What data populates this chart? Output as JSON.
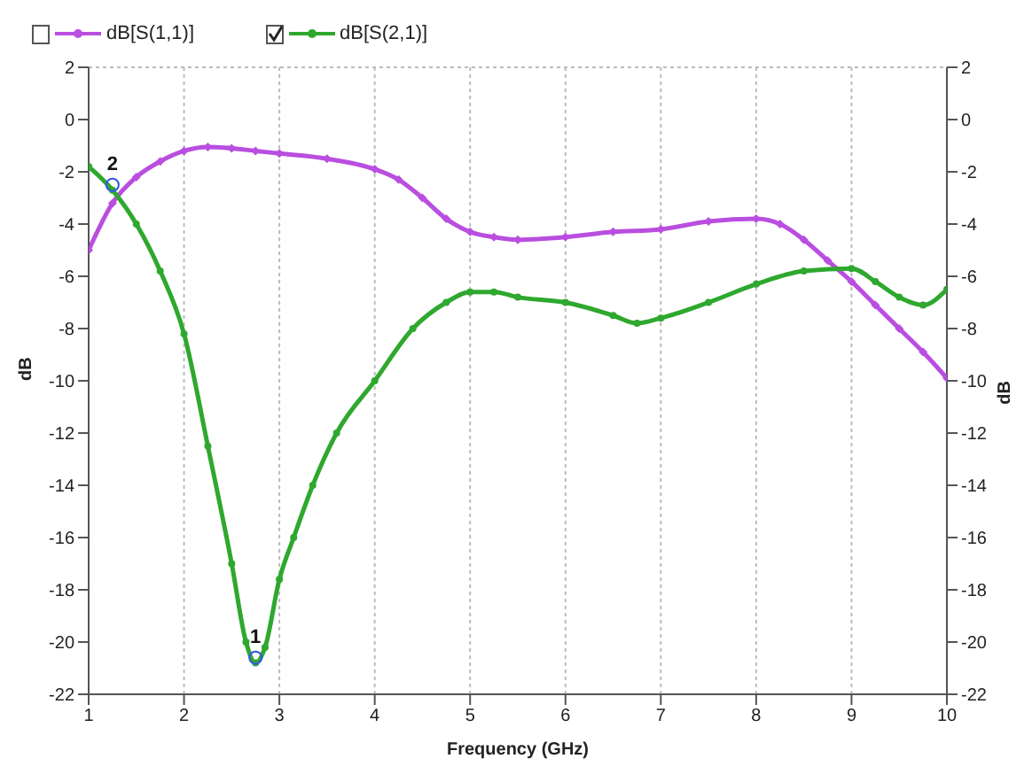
{
  "chart_data": {
    "type": "line",
    "xlabel": "Frequency (GHz)",
    "ylabel": "dB",
    "y2label": "dB",
    "xlim": [
      1,
      10
    ],
    "xticks": [
      1,
      2,
      3,
      4,
      5,
      6,
      7,
      8,
      9,
      10
    ],
    "ylim": [
      -22,
      2
    ],
    "yticks": [
      -22,
      -20,
      -18,
      -16,
      -14,
      -12,
      -10,
      -8,
      -6,
      -4,
      -2,
      0,
      2
    ],
    "y2lim": [
      -22,
      2
    ],
    "y2ticks": [
      -22,
      -20,
      -18,
      -16,
      -14,
      -12,
      -10,
      -8,
      -6,
      -4,
      -2,
      0,
      2
    ],
    "grid": true,
    "legend": "top left",
    "line_style": "solid",
    "series": [
      {
        "name": "dB[S(1,1)]",
        "color": "#b94ee0",
        "marker": "diamond",
        "x": [
          1,
          1.25,
          1.5,
          1.75,
          2,
          2.25,
          2.5,
          2.75,
          3,
          3.5,
          4,
          4.25,
          4.5,
          4.75,
          5,
          5.25,
          5.5,
          6,
          6.5,
          7,
          7.5,
          8,
          8.25,
          8.5,
          8.75,
          9,
          9.25,
          9.5,
          9.75,
          10
        ],
        "values": [
          -5,
          -3.2,
          -2.2,
          -1.6,
          -1.2,
          -1.05,
          -1.1,
          -1.2,
          -1.3,
          -1.5,
          -1.9,
          -2.3,
          -3,
          -3.8,
          -4.3,
          -4.5,
          -4.6,
          -4.5,
          -4.3,
          -4.2,
          -3.9,
          -3.8,
          -4,
          -4.6,
          -5.4,
          -6.2,
          -7.1,
          -8,
          -8.9,
          -9.9
        ]
      },
      {
        "name": "dB[S(2,1)]",
        "color": "#2ea82e",
        "marker": "circle",
        "x": [
          1,
          1.25,
          1.5,
          1.75,
          2,
          2.25,
          2.5,
          2.65,
          2.75,
          2.85,
          3,
          3.15,
          3.35,
          3.6,
          4,
          4.4,
          4.75,
          5,
          5.25,
          5.5,
          6,
          6.5,
          6.75,
          7,
          7.5,
          8,
          8.5,
          9,
          9.25,
          9.5,
          9.75,
          10
        ],
        "values": [
          -1.8,
          -2.7,
          -4,
          -5.8,
          -8.2,
          -12.5,
          -17,
          -20,
          -20.8,
          -20.2,
          -17.6,
          -16,
          -14,
          -12,
          -10,
          -8,
          -7,
          -6.6,
          -6.6,
          -6.8,
          -7,
          -7.5,
          -7.8,
          -7.6,
          -7,
          -6.3,
          -5.8,
          -5.7,
          -6.2,
          -6.8,
          -7.1,
          -6.5
        ]
      }
    ],
    "annotations": [
      {
        "text": "1",
        "x": 2.75,
        "y": -20.6
      },
      {
        "text": "2",
        "x": 1.25,
        "y": -2.5
      }
    ]
  }
}
